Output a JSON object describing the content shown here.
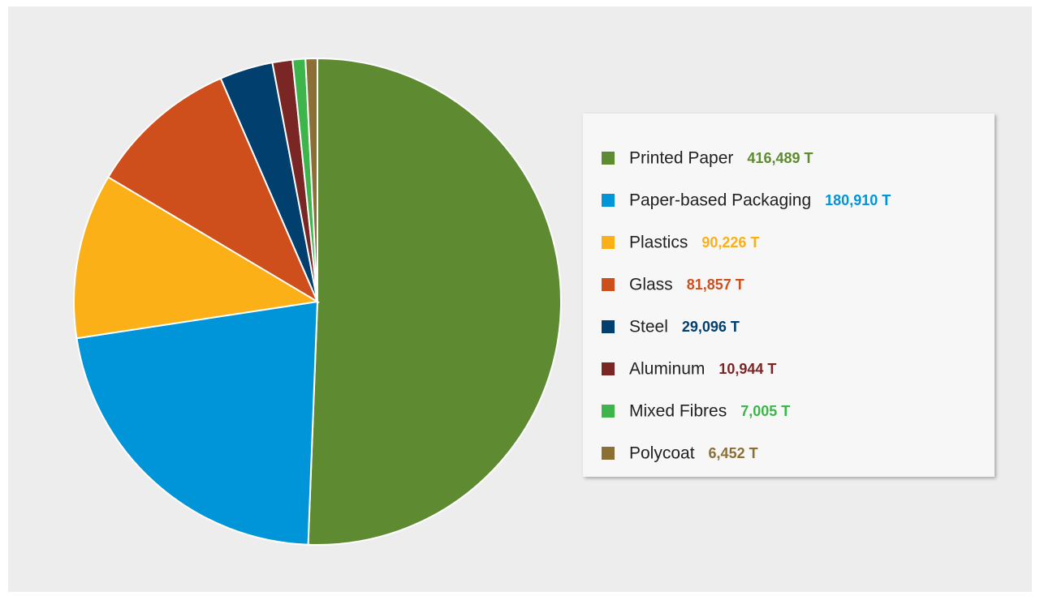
{
  "chart_data": {
    "type": "pie",
    "categories": [
      "Printed Paper",
      "Paper-based Packaging",
      "Plastics",
      "Glass",
      "Steel",
      "Aluminum",
      "Mixed Fibres",
      "Polycoat"
    ],
    "values": [
      416489,
      180910,
      90226,
      81857,
      29096,
      10944,
      7005,
      6452
    ],
    "value_labels": [
      "416,489 T",
      "180,910 T",
      "90,226 T",
      "81,857 T",
      "29,096 T",
      "10,944 T",
      "7,005 T",
      "6,452 T"
    ],
    "colors": [
      "#5e8b31",
      "#0095d9",
      "#fbb017",
      "#cf4f1c",
      "#003f6e",
      "#7a2625",
      "#3db54a",
      "#8b6f35"
    ],
    "legend": "right"
  }
}
